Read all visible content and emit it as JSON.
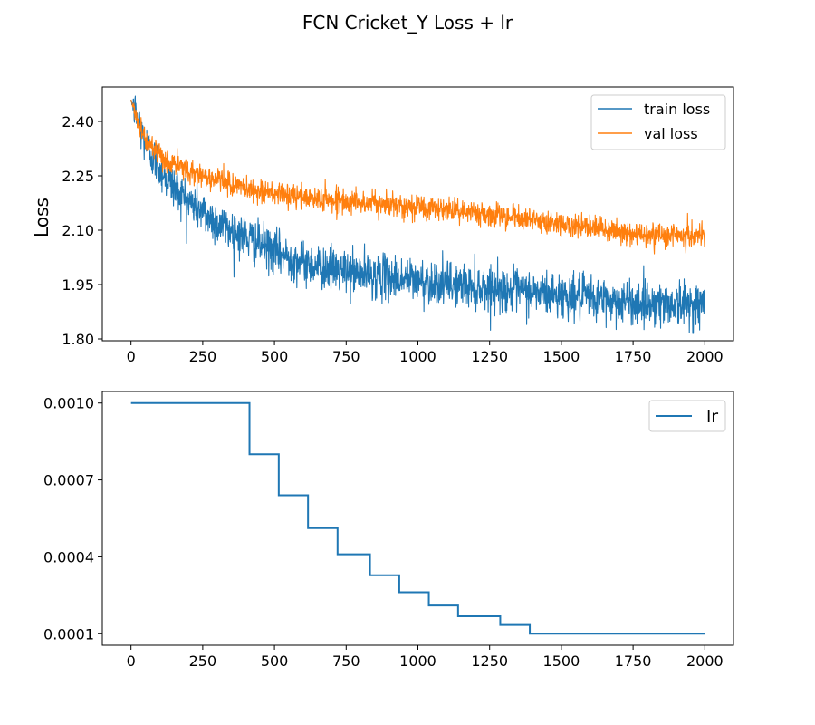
{
  "figure": {
    "title": "FCN Cricket_Y Loss + lr"
  },
  "colors": {
    "train": "#1f77b4",
    "val": "#ff7f0e",
    "lr": "#1f77b4",
    "axes": "#000000",
    "legend_border": "#cccccc"
  },
  "chart_data": [
    {
      "type": "line",
      "title": "",
      "xlabel": "",
      "ylabel": "Loss",
      "xlim": [
        -100,
        2100
      ],
      "ylim": [
        1.795,
        2.495
      ],
      "xticks": [
        0,
        250,
        500,
        750,
        1000,
        1250,
        1500,
        1750,
        2000
      ],
      "yticks": [
        1.8,
        1.95,
        2.1,
        2.25,
        2.4
      ],
      "ytick_labels": [
        "1.80",
        "1.95",
        "2.10",
        "2.25",
        "2.40"
      ],
      "grid": false,
      "legend_position": "top-right",
      "series": [
        {
          "name": "train loss",
          "color_key": "train",
          "num_points": 2000,
          "noise_approx": 0.03,
          "trend": {
            "x": [
              0,
              25,
              50,
              100,
              150,
              200,
              250,
              300,
              400,
              500,
              600,
              750,
              1000,
              1250,
              1500,
              1750,
              2000
            ],
            "y": [
              2.46,
              2.4,
              2.34,
              2.27,
              2.22,
              2.18,
              2.15,
              2.12,
              2.08,
              2.04,
              2.01,
              1.985,
              1.96,
              1.94,
              1.92,
              1.9,
              1.895
            ]
          }
        },
        {
          "name": "val loss",
          "color_key": "val",
          "num_points": 2000,
          "noise_approx": 0.016,
          "trend": {
            "x": [
              0,
              25,
              50,
              100,
              150,
              200,
              250,
              300,
              400,
              500,
              600,
              750,
              1000,
              1250,
              1500,
              1750,
              2000
            ],
            "y": [
              2.46,
              2.4,
              2.35,
              2.3,
              2.28,
              2.265,
              2.25,
              2.24,
              2.215,
              2.2,
              2.19,
              2.18,
              2.165,
              2.145,
              2.115,
              2.09,
              2.085
            ]
          }
        }
      ]
    },
    {
      "type": "line",
      "title": "",
      "xlabel": "",
      "ylabel": "",
      "xlim": [
        -100,
        2100
      ],
      "ylim": [
        5.5e-05,
        0.001045
      ],
      "xticks": [
        0,
        250,
        500,
        750,
        1000,
        1250,
        1500,
        1750,
        2000
      ],
      "yticks": [
        0.0001,
        0.0004,
        0.0007,
        0.001
      ],
      "ytick_labels": [
        "0.0001",
        "0.0004",
        "0.0007",
        "0.0010"
      ],
      "grid": false,
      "legend_position": "top-right",
      "series": [
        {
          "name": "lr",
          "color_key": "lr",
          "step": true,
          "x": [
            0,
            413,
            413,
            515,
            515,
            617,
            617,
            720,
            720,
            833,
            833,
            935,
            935,
            1038,
            1038,
            1140,
            1140,
            1287,
            1287,
            1390,
            1390,
            2000
          ],
          "y": [
            0.001,
            0.001,
            0.0008,
            0.0008,
            0.00064,
            0.00064,
            0.000512,
            0.000512,
            0.00041,
            0.00041,
            0.000328,
            0.000328,
            0.000262,
            0.000262,
            0.00021,
            0.00021,
            0.000168,
            0.000168,
            0.000134,
            0.000134,
            0.0001,
            0.0001
          ]
        }
      ]
    }
  ]
}
